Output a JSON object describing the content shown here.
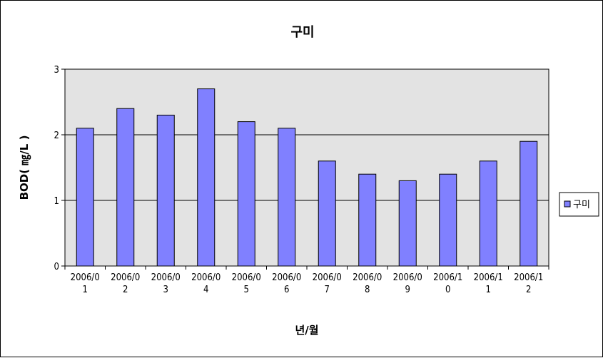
{
  "chart_data": {
    "type": "bar",
    "title": "구미",
    "xlabel": "년/월",
    "ylabel": "BOD( ㎎/L )",
    "ylim": [
      0,
      3
    ],
    "yticks": [
      "0",
      "1",
      "2",
      "3"
    ],
    "categories": [
      [
        "2006/0",
        "1"
      ],
      [
        "2006/0",
        "2"
      ],
      [
        "2006/0",
        "3"
      ],
      [
        "2006/0",
        "4"
      ],
      [
        "2006/0",
        "5"
      ],
      [
        "2006/0",
        "6"
      ],
      [
        "2006/0",
        "7"
      ],
      [
        "2006/0",
        "8"
      ],
      [
        "2006/0",
        "9"
      ],
      [
        "2006/1",
        "0"
      ],
      [
        "2006/1",
        "1"
      ],
      [
        "2006/1",
        "2"
      ]
    ],
    "series": [
      {
        "name": "구미",
        "values": [
          2.1,
          2.4,
          2.3,
          2.7,
          2.2,
          2.1,
          1.6,
          1.4,
          1.3,
          1.4,
          1.6,
          1.9
        ]
      }
    ],
    "grid": true,
    "legend": "right",
    "colors": {
      "bar": "#8080ff",
      "plot_bg": "#e3e3e3",
      "border": "#000000"
    }
  }
}
